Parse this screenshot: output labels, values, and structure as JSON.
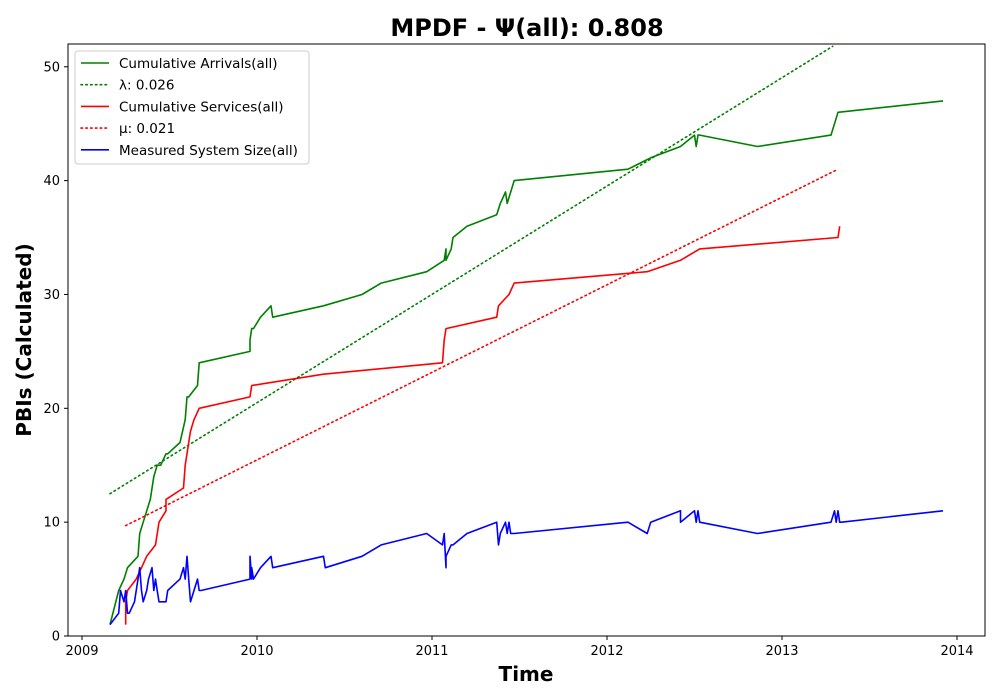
{
  "chart_data": {
    "type": "line",
    "title": "MPDF -  Ψ(all): 0.808",
    "xlabel": "Time",
    "ylabel": "PBIs (Calculated)",
    "xlim": [
      2008.92,
      2014.16
    ],
    "ylim": [
      0,
      52
    ],
    "x_ticks": [
      2009,
      2010,
      2011,
      2012,
      2013,
      2014
    ],
    "x_tick_labels": [
      "2009",
      "2010",
      "2011",
      "2012",
      "2013",
      "2014"
    ],
    "y_ticks": [
      0,
      10,
      20,
      30,
      40,
      50
    ],
    "y_tick_labels": [
      "0",
      "10",
      "20",
      "30",
      "40",
      "50"
    ],
    "legend_position": "top-left",
    "grid": false,
    "series": [
      {
        "name": "Cumulative Arrivals(all)",
        "color": "#008000",
        "style": "solid",
        "x": [
          2009.16,
          2009.21,
          2009.24,
          2009.26,
          2009.32,
          2009.33,
          2009.35,
          2009.37,
          2009.39,
          2009.41,
          2009.43,
          2009.45,
          2009.48,
          2009.49,
          2009.56,
          2009.59,
          2009.6,
          2009.61,
          2009.66,
          2009.67,
          2009.96,
          2009.96,
          2009.97,
          2009.98,
          2010.02,
          2010.08,
          2010.09,
          2010.38,
          2010.6,
          2010.71,
          2010.97,
          2011.07,
          2011.08,
          2011.08,
          2011.11,
          2011.12,
          2011.2,
          2011.37,
          2011.39,
          2011.42,
          2011.43,
          2011.47,
          2012.12,
          2012.25,
          2012.42,
          2012.5,
          2012.51,
          2012.52,
          2012.53,
          2012.86,
          2013.28,
          2013.32,
          2013.92
        ],
        "y": [
          1,
          4,
          5,
          6,
          7,
          9,
          10,
          11,
          12,
          14,
          15,
          15,
          16,
          16,
          17,
          19,
          21,
          21,
          22,
          24,
          25,
          26,
          27,
          27,
          28,
          29,
          28,
          29,
          30,
          31,
          32,
          33,
          34,
          33,
          34,
          35,
          36,
          37,
          38,
          39,
          38,
          40,
          41,
          42,
          43,
          44,
          43,
          44,
          44,
          43,
          44,
          46,
          47
        ]
      },
      {
        "name": "λ: 0.026",
        "color": "#008000",
        "style": "dotted",
        "x": [
          2009.16,
          2013.29
        ],
        "y": [
          12.5,
          51.8
        ]
      },
      {
        "name": "Cumulative Services(all)",
        "color": "#ff0000",
        "style": "solid",
        "x": [
          2009.25,
          2009.25,
          2009.26,
          2009.31,
          2009.34,
          2009.37,
          2009.42,
          2009.44,
          2009.48,
          2009.48,
          2009.58,
          2009.59,
          2009.6,
          2009.62,
          2009.64,
          2009.67,
          2009.96,
          2009.97,
          2010.38,
          2011.06,
          2011.07,
          2011.08,
          2011.37,
          2011.38,
          2011.44,
          2011.47,
          2012.23,
          2012.42,
          2012.53,
          2013.32,
          2013.33
        ],
        "y": [
          1,
          3,
          4,
          5,
          6,
          7,
          8,
          10,
          11,
          12,
          13,
          15,
          16,
          18,
          19,
          20,
          21,
          22,
          23,
          24,
          26,
          27,
          28,
          29,
          30,
          31,
          32,
          33,
          34,
          35,
          36
        ]
      },
      {
        "name": "μ: 0.021",
        "color": "#ff0000",
        "style": "dotted",
        "x": [
          2009.25,
          2013.32
        ],
        "y": [
          9.7,
          41.0
        ]
      },
      {
        "name": "Measured System Size(all)",
        "color": "#0000ff",
        "style": "solid",
        "x": [
          2009.16,
          2009.21,
          2009.22,
          2009.24,
          2009.25,
          2009.26,
          2009.27,
          2009.3,
          2009.32,
          2009.33,
          2009.34,
          2009.35,
          2009.37,
          2009.38,
          2009.4,
          2009.41,
          2009.42,
          2009.43,
          2009.44,
          2009.48,
          2009.49,
          2009.56,
          2009.58,
          2009.59,
          2009.6,
          2009.61,
          2009.62,
          2009.64,
          2009.66,
          2009.67,
          2009.68,
          2009.96,
          2009.96,
          2009.97,
          2009.97,
          2009.98,
          2010.02,
          2010.08,
          2010.09,
          2010.38,
          2010.39,
          2010.6,
          2010.71,
          2010.97,
          2011.06,
          2011.07,
          2011.08,
          2011.08,
          2011.11,
          2011.12,
          2011.2,
          2011.37,
          2011.38,
          2011.39,
          2011.42,
          2011.43,
          2011.44,
          2011.45,
          2011.47,
          2012.12,
          2012.23,
          2012.25,
          2012.42,
          2012.42,
          2012.5,
          2012.51,
          2012.52,
          2012.53,
          2012.86,
          2013.28,
          2013.3,
          2013.31,
          2013.32,
          2013.33,
          2013.34,
          2013.92
        ],
        "y": [
          1,
          2,
          4,
          3,
          4,
          2,
          2,
          3,
          5,
          6,
          4,
          3,
          4,
          5,
          6,
          4,
          5,
          4,
          3,
          3,
          4,
          5,
          6,
          5,
          7,
          5,
          3,
          4,
          5,
          4,
          4,
          5,
          7,
          5,
          6,
          5,
          6,
          7,
          6,
          7,
          6,
          7,
          8,
          9,
          8,
          9,
          6,
          7,
          8,
          8,
          9,
          10,
          8,
          9,
          10,
          9,
          10,
          9,
          9,
          10,
          9,
          10,
          11,
          10,
          11,
          10,
          11,
          10,
          9,
          10,
          11,
          10,
          11,
          10,
          10,
          11
        ]
      }
    ]
  }
}
